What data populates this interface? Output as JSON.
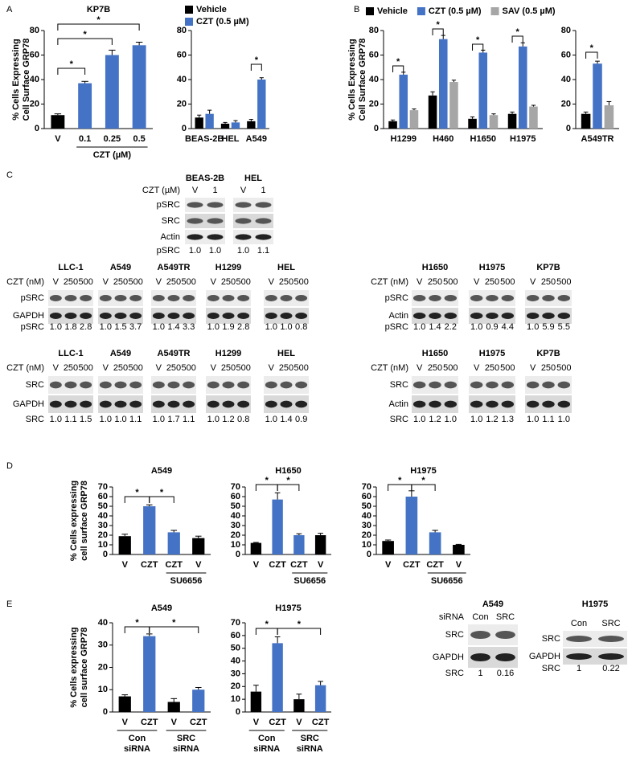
{
  "panels": [
    "A",
    "B",
    "C",
    "D",
    "E"
  ],
  "chart_data": [
    {
      "type": "bar",
      "title": "KP7B",
      "ylabel": [
        "% Cells Expressing",
        "Cell Surface GRP78"
      ],
      "categories": [
        "V",
        "0.1",
        "0.25",
        "0.5"
      ],
      "values": [
        11,
        37,
        60,
        68
      ],
      "errors": [
        1,
        1.5,
        4,
        2.5
      ],
      "colors": [
        "#000000",
        "#4472c4",
        "#4472c4",
        "#4472c4"
      ],
      "ylim": [
        0,
        80
      ],
      "yticks": [
        0,
        20,
        40,
        60,
        80
      ],
      "group_labels": [
        [
          "CZT (µM)"
        ]
      ],
      "annotations": [
        "*",
        "*",
        "*"
      ]
    },
    {
      "type": "bar",
      "categories": [
        "BEAS-2B",
        "HEL",
        "A549"
      ],
      "series": [
        {
          "name": "Vehicle",
          "color": "#000000",
          "values": [
            9,
            4,
            6
          ],
          "errors": [
            2,
            1,
            1.5
          ]
        },
        {
          "name": "CZT (0.5 µM)",
          "color": "#4472c4",
          "values": [
            12,
            5,
            40
          ],
          "errors": [
            3,
            1.5,
            1.5
          ]
        }
      ],
      "ylim": [
        0,
        80
      ],
      "yticks": [
        0,
        20,
        40,
        60,
        80
      ],
      "legend": "upper-left",
      "annotations": [
        "*"
      ]
    },
    {
      "type": "bar",
      "ylabel": [
        "% Cells Expressing",
        "Cell Surface GRP78"
      ],
      "categories": [
        "H1299",
        "H460",
        "H1650",
        "H1975"
      ],
      "series": [
        {
          "name": "Vehicle",
          "color": "#000000",
          "values": [
            6,
            27,
            8,
            12
          ],
          "errors": [
            1,
            3,
            1.5,
            1.5
          ]
        },
        {
          "name": "CZT (0.5 µM)",
          "color": "#4472c4",
          "values": [
            44,
            73,
            62,
            67
          ],
          "errors": [
            2,
            3,
            2,
            3
          ]
        },
        {
          "name": "SAV (0.5 µM)",
          "color": "#a6a6a6",
          "values": [
            15,
            38,
            11,
            18
          ],
          "errors": [
            1,
            1.5,
            1,
            1
          ]
        }
      ],
      "ylim": [
        0,
        80
      ],
      "yticks": [
        0,
        20,
        40,
        60,
        80
      ],
      "legend": "top",
      "annotations": [
        "*",
        "*",
        "*",
        "*"
      ]
    },
    {
      "type": "bar",
      "categories": [
        "A549TR"
      ],
      "series": [
        {
          "color": "#000000",
          "values": [
            12
          ],
          "errors": [
            1.5
          ]
        },
        {
          "color": "#4472c4",
          "values": [
            53
          ],
          "errors": [
            2
          ]
        },
        {
          "color": "#a6a6a6",
          "values": [
            19
          ],
          "errors": [
            3
          ]
        }
      ],
      "ylim": [
        0,
        80
      ],
      "yticks": [
        0,
        20,
        40,
        60,
        80
      ],
      "annotations": [
        "*"
      ]
    },
    {
      "type": "bar",
      "title": "A549",
      "ylabel": [
        "% Cells expressing",
        "cell surface GRP78"
      ],
      "categories": [
        "V",
        "CZT",
        "CZT",
        "V"
      ],
      "values": [
        19,
        50,
        23,
        17
      ],
      "errors": [
        2,
        1.5,
        2,
        2
      ],
      "colors": [
        "#000000",
        "#4472c4",
        "#4472c4",
        "#000000"
      ],
      "ylim": [
        0,
        70
      ],
      "yticks": [
        0,
        10,
        20,
        30,
        40,
        50,
        60,
        70
      ],
      "group_labels": [
        [
          "SU6656"
        ]
      ],
      "annotations": [
        "*",
        "*"
      ]
    },
    {
      "type": "bar",
      "title": "H1650",
      "categories": [
        "V",
        "CZT",
        "CZT",
        "V"
      ],
      "values": [
        12,
        57,
        20,
        20
      ],
      "errors": [
        0.5,
        7,
        1.5,
        2
      ],
      "colors": [
        "#000000",
        "#4472c4",
        "#4472c4",
        "#000000"
      ],
      "ylim": [
        0,
        70
      ],
      "yticks": [
        0,
        10,
        20,
        30,
        40,
        50,
        60,
        70
      ],
      "group_labels": [
        [
          "SU6656"
        ]
      ],
      "annotations": [
        "*",
        "*"
      ]
    },
    {
      "type": "bar",
      "title": "H1975",
      "categories": [
        "V",
        "CZT",
        "CZT",
        "V"
      ],
      "values": [
        14,
        60,
        23,
        10
      ],
      "errors": [
        1,
        6,
        2,
        0.5
      ],
      "colors": [
        "#000000",
        "#4472c4",
        "#4472c4",
        "#000000"
      ],
      "ylim": [
        0,
        70
      ],
      "yticks": [
        0,
        10,
        20,
        30,
        40,
        50,
        60,
        70
      ],
      "group_labels": [
        [
          "SU6656"
        ]
      ],
      "annotations": [
        "*",
        "*"
      ]
    },
    {
      "type": "bar",
      "title": "A549",
      "ylabel": [
        "% Cells expressing",
        "cell surface GRP78"
      ],
      "categories": [
        "V",
        "CZT",
        "V",
        "CZT"
      ],
      "values": [
        7,
        34,
        4.5,
        10
      ],
      "errors": [
        0.7,
        1,
        1.5,
        1
      ],
      "colors": [
        "#000000",
        "#4472c4",
        "#000000",
        "#4472c4"
      ],
      "ylim": [
        0,
        40
      ],
      "yticks": [
        0,
        10,
        20,
        30,
        40
      ],
      "group_labels": [
        [
          "Con",
          "siRNA"
        ],
        [
          "SRC",
          "siRNA"
        ]
      ],
      "annotations": [
        "*",
        "*"
      ]
    },
    {
      "type": "bar",
      "title": "H1975",
      "categories": [
        "V",
        "CZT",
        "V",
        "CZT"
      ],
      "values": [
        16,
        54,
        10,
        21
      ],
      "errors": [
        5,
        5,
        4,
        3
      ],
      "colors": [
        "#000000",
        "#4472c4",
        "#000000",
        "#4472c4"
      ],
      "ylim": [
        0,
        70
      ],
      "yticks": [
        0,
        10,
        20,
        30,
        40,
        50,
        60,
        70
      ],
      "group_labels": [
        [
          "Con",
          "siRNA"
        ],
        [
          "SRC",
          "siRNA"
        ]
      ],
      "annotations": [
        "*",
        "*"
      ]
    }
  ],
  "blots": [
    {
      "x_label": "CZT (µM)",
      "rows": [
        "pSRC",
        "SRC",
        "Actin"
      ],
      "quant_label": "pSRC",
      "panels": [
        {
          "title": "BEAS-2B",
          "lanes": [
            "V",
            "1"
          ],
          "quant": [
            "1.0",
            "1.0"
          ]
        },
        {
          "title": "HEL",
          "lanes": [
            "V",
            "1"
          ],
          "quant": [
            "1.0",
            "1.1"
          ]
        }
      ]
    },
    {
      "x_label": "CZT (nM)",
      "rows": [
        "pSRC",
        "GAPDH"
      ],
      "quant_label": "pSRC",
      "panels": [
        {
          "title": "LLC-1",
          "lanes": [
            "V",
            "250",
            "500"
          ],
          "quant": [
            "1.0",
            "1.8",
            "2.8"
          ]
        },
        {
          "title": "A549",
          "lanes": [
            "V",
            "250",
            "500"
          ],
          "quant": [
            "1.0",
            "1.5",
            "3.7"
          ]
        },
        {
          "title": "A549TR",
          "lanes": [
            "V",
            "250",
            "500"
          ],
          "quant": [
            "1.0",
            "1.4",
            "3.3"
          ]
        },
        {
          "title": "H1299",
          "lanes": [
            "V",
            "250",
            "500"
          ],
          "quant": [
            "1.0",
            "1.9",
            "2.8"
          ]
        },
        {
          "title": "HEL",
          "lanes": [
            "V",
            "250",
            "500"
          ],
          "quant": [
            "1.0",
            "1.0",
            "0.8"
          ]
        }
      ]
    },
    {
      "x_label": "CZT (nM)",
      "rows": [
        "pSRC",
        "Actin"
      ],
      "quant_label": "pSRC",
      "panels": [
        {
          "title": "H1650",
          "lanes": [
            "V",
            "250",
            "500"
          ],
          "quant": [
            "1.0",
            "1.4",
            "2.2"
          ]
        },
        {
          "title": "H1975",
          "lanes": [
            "V",
            "250",
            "500"
          ],
          "quant": [
            "1.0",
            "0.9",
            "4.4"
          ]
        },
        {
          "title": "KP7B",
          "lanes": [
            "V",
            "250",
            "500"
          ],
          "quant": [
            "1.0",
            "5.9",
            "5.5"
          ]
        }
      ]
    },
    {
      "x_label": "CZT (nM)",
      "rows": [
        "SRC",
        "GAPDH"
      ],
      "quant_label": "SRC",
      "panels": [
        {
          "title": "LLC-1",
          "lanes": [
            "V",
            "250",
            "500"
          ],
          "quant": [
            "1.0",
            "1.1",
            "1.5"
          ]
        },
        {
          "title": "A549",
          "lanes": [
            "V",
            "250",
            "500"
          ],
          "quant": [
            "1.0",
            "1.0",
            "1.1"
          ]
        },
        {
          "title": "A549TR",
          "lanes": [
            "V",
            "250",
            "500"
          ],
          "quant": [
            "1.0",
            "1.7",
            "1.1"
          ]
        },
        {
          "title": "H1299",
          "lanes": [
            "V",
            "250",
            "500"
          ],
          "quant": [
            "1.0",
            "1.2",
            "0.8"
          ]
        },
        {
          "title": "HEL",
          "lanes": [
            "V",
            "250",
            "500"
          ],
          "quant": [
            "1.0",
            "1.4",
            "0.9"
          ]
        }
      ]
    },
    {
      "x_label": "CZT (nM)",
      "rows": [
        "SRC",
        "Actin"
      ],
      "quant_label": "SRC",
      "panels": [
        {
          "title": "H1650",
          "lanes": [
            "V",
            "250",
            "500"
          ],
          "quant": [
            "1.0",
            "1.2",
            "1.0"
          ]
        },
        {
          "title": "H1975",
          "lanes": [
            "V",
            "250",
            "500"
          ],
          "quant": [
            "1.0",
            "1.2",
            "1.3"
          ]
        },
        {
          "title": "KP7B",
          "lanes": [
            "V",
            "250",
            "500"
          ],
          "quant": [
            "1.0",
            "1.1",
            "1.0"
          ]
        }
      ]
    },
    {
      "x_label": "siRNA",
      "rows": [
        "SRC",
        "GAPDH"
      ],
      "quant_label": "SRC",
      "panels": [
        {
          "title": "A549",
          "lanes": [
            "Con",
            "SRC"
          ],
          "quant": [
            "1",
            "0.16"
          ]
        }
      ]
    },
    {
      "rows": [
        "SRC",
        "GAPDH"
      ],
      "quant_label": "SRC",
      "panels": [
        {
          "title": "H1975",
          "lanes": [
            "Con",
            "SRC"
          ],
          "quant": [
            "1",
            "0.22"
          ]
        }
      ]
    }
  ]
}
